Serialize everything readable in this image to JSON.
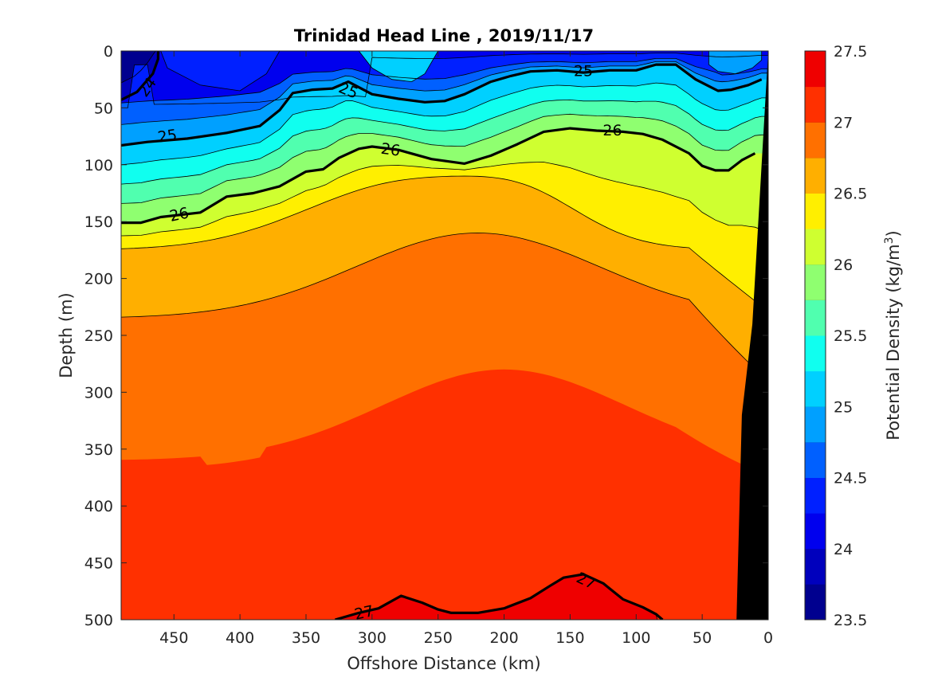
{
  "chart_data": {
    "type": "contour",
    "title": "Trinidad Head Line , 2019/11/17",
    "xlabel": "Offshore Distance (km)",
    "ylabel": "Depth (m)",
    "colorbar_label": "Potential Density (kg/m",
    "colorbar_label_sup": "3",
    "colorbar_label_close": ")",
    "xlim": [
      490,
      0
    ],
    "ylim": [
      0,
      500
    ],
    "x_reversed": true,
    "y_reversed": true,
    "x_ticks": [
      450,
      400,
      350,
      300,
      250,
      200,
      150,
      100,
      50,
      0
    ],
    "y_ticks": [
      0,
      50,
      100,
      150,
      200,
      250,
      300,
      350,
      400,
      450,
      500
    ],
    "colorbar_range": [
      23.5,
      27.5
    ],
    "colorbar_ticks": [
      23.5,
      24,
      24.5,
      25,
      25.5,
      26,
      26.5,
      27,
      27.5
    ],
    "colorbar_tick_labels": [
      "23.5",
      "24",
      "24.5",
      "25",
      "25.5",
      "26",
      "26.5",
      "27",
      "27.5"
    ],
    "levels": [
      23.5,
      23.75,
      24,
      24.25,
      24.5,
      24.75,
      25,
      25.25,
      25.5,
      25.75,
      26,
      26.25,
      26.5,
      26.75,
      27,
      27.25,
      27.5
    ],
    "level_colors": [
      "#00008f",
      "#0000bd",
      "#0000ee",
      "#0020ff",
      "#0060ff",
      "#00a0ff",
      "#00d0ff",
      "#10ffef",
      "#50ffaf",
      "#8fff70",
      "#cfff30",
      "#ffef00",
      "#ffaf00",
      "#ff7000",
      "#ff3000",
      "#ef0000",
      "#af0000"
    ],
    "labeled_contours": [
      24,
      25,
      26,
      27
    ],
    "contour_labels": [
      {
        "text": "24",
        "x": 470,
        "y": 32,
        "rot": -55
      },
      {
        "text": "25",
        "x": 140,
        "y": 18,
        "rot": 0
      },
      {
        "text": "25",
        "x": 318,
        "y": 35,
        "rot": 22
      },
      {
        "text": "25",
        "x": 455,
        "y": 75,
        "rot": -8
      },
      {
        "text": "26",
        "x": 118,
        "y": 70,
        "rot": 0
      },
      {
        "text": "26",
        "x": 286,
        "y": 87,
        "rot": 8
      },
      {
        "text": "26",
        "x": 446,
        "y": 144,
        "rot": -12
      },
      {
        "text": "27",
        "x": 306,
        "y": 494,
        "rot": -12
      },
      {
        "text": "27",
        "x": 138,
        "y": 466,
        "rot": 25
      }
    ],
    "isolines": [
      {
        "value": 24,
        "points": [
          [
            490,
            43
          ],
          [
            478,
            36
          ],
          [
            466,
            20
          ],
          [
            462,
            7
          ],
          [
            462,
            0
          ]
        ]
      },
      {
        "value": 25,
        "points": [
          [
            490,
            83
          ],
          [
            470,
            80
          ],
          [
            440,
            77
          ],
          [
            410,
            72
          ],
          [
            385,
            66
          ],
          [
            370,
            52
          ],
          [
            360,
            37
          ],
          [
            345,
            34
          ],
          [
            330,
            33
          ],
          [
            318,
            27
          ],
          [
            300,
            38
          ],
          [
            280,
            42
          ],
          [
            260,
            45
          ],
          [
            245,
            44
          ],
          [
            230,
            38
          ],
          [
            210,
            27
          ],
          [
            195,
            22
          ],
          [
            180,
            18
          ],
          [
            160,
            17
          ],
          [
            140,
            19
          ],
          [
            120,
            17
          ],
          [
            100,
            17
          ],
          [
            85,
            12
          ],
          [
            70,
            12
          ],
          [
            55,
            25
          ],
          [
            38,
            35
          ],
          [
            28,
            34
          ],
          [
            15,
            30
          ],
          [
            5,
            25
          ]
        ]
      },
      {
        "value": 26,
        "points": [
          [
            490,
            151
          ],
          [
            475,
            151
          ],
          [
            460,
            146
          ],
          [
            430,
            142
          ],
          [
            410,
            128
          ],
          [
            390,
            125
          ],
          [
            370,
            119
          ],
          [
            350,
            106
          ],
          [
            337,
            104
          ],
          [
            325,
            94
          ],
          [
            310,
            86
          ],
          [
            300,
            84
          ],
          [
            280,
            87
          ],
          [
            255,
            95
          ],
          [
            230,
            99
          ],
          [
            210,
            92
          ],
          [
            190,
            82
          ],
          [
            170,
            71
          ],
          [
            150,
            68
          ],
          [
            130,
            70
          ],
          [
            110,
            71
          ],
          [
            95,
            73
          ],
          [
            80,
            78
          ],
          [
            60,
            90
          ],
          [
            50,
            101
          ],
          [
            40,
            105
          ],
          [
            30,
            105
          ],
          [
            20,
            96
          ],
          [
            10,
            90
          ]
        ]
      },
      {
        "value": 27,
        "points": [
          [
            328,
            500
          ],
          [
            310,
            494
          ],
          [
            295,
            490
          ],
          [
            278,
            479
          ],
          [
            262,
            485
          ],
          [
            250,
            491
          ],
          [
            240,
            494
          ],
          [
            220,
            494
          ],
          [
            200,
            490
          ],
          [
            180,
            481
          ],
          [
            165,
            470
          ],
          [
            155,
            463
          ],
          [
            140,
            460
          ],
          [
            125,
            468
          ],
          [
            110,
            482
          ],
          [
            95,
            489
          ],
          [
            85,
            495
          ],
          [
            80,
            500
          ]
        ]
      }
    ],
    "land_mask_offshore_km_at_depth": [
      [
        0,
        0
      ],
      [
        0,
        500
      ],
      [
        24,
        500
      ],
      [
        20,
        320
      ],
      [
        12,
        240
      ],
      [
        0,
        0
      ]
    ],
    "colors": {
      "land": "#000000",
      "contour_line": "#000000",
      "background": "#ffffff"
    }
  }
}
